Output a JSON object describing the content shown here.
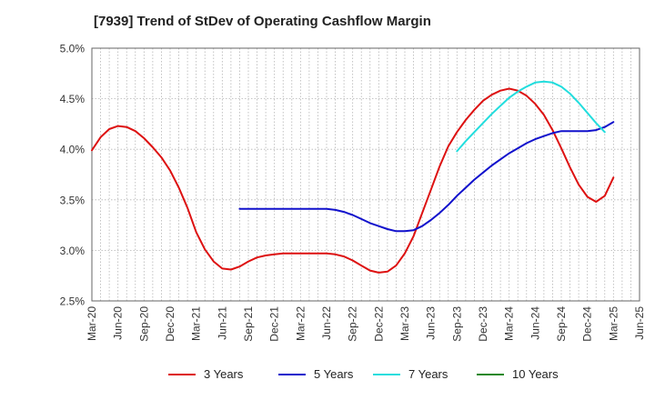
{
  "chart_data": {
    "type": "line",
    "title": "[7939]  Trend of StDev of Operating Cashflow Margin",
    "xlabel": "",
    "ylabel": "",
    "x_ticks": [
      "Mar-20",
      "Jun-20",
      "Sep-20",
      "Dec-20",
      "Mar-21",
      "Jun-21",
      "Sep-21",
      "Dec-21",
      "Mar-22",
      "Jun-22",
      "Sep-22",
      "Dec-22",
      "Mar-23",
      "Jun-23",
      "Sep-23",
      "Dec-23",
      "Mar-24",
      "Jun-24",
      "Sep-24",
      "Dec-24",
      "Mar-25",
      "Jun-25"
    ],
    "y_ticks": [
      "2.5%",
      "3.0%",
      "3.5%",
      "4.0%",
      "4.5%",
      "5.0%"
    ],
    "ylim": [
      2.5,
      5.0
    ],
    "grid": true,
    "legend_position": "bottom",
    "series": [
      {
        "name": "3 Years",
        "color": "#dd1111",
        "points": [
          [
            "Mar-20",
            3.99
          ],
          [
            "Apr-20",
            4.12
          ],
          [
            "May-20",
            4.2
          ],
          [
            "Jun-20",
            4.23
          ],
          [
            "Jul-20",
            4.22
          ],
          [
            "Aug-20",
            4.18
          ],
          [
            "Sep-20",
            4.11
          ],
          [
            "Oct-20",
            4.02
          ],
          [
            "Nov-20",
            3.92
          ],
          [
            "Dec-20",
            3.79
          ],
          [
            "Jan-21",
            3.62
          ],
          [
            "Feb-21",
            3.42
          ],
          [
            "Mar-21",
            3.18
          ],
          [
            "Apr-21",
            3.01
          ],
          [
            "May-21",
            2.89
          ],
          [
            "Jun-21",
            2.82
          ],
          [
            "Jul-21",
            2.81
          ],
          [
            "Aug-21",
            2.84
          ],
          [
            "Sep-21",
            2.89
          ],
          [
            "Oct-21",
            2.93
          ],
          [
            "Nov-21",
            2.95
          ],
          [
            "Dec-21",
            2.96
          ],
          [
            "Jan-22",
            2.97
          ],
          [
            "Feb-22",
            2.97
          ],
          [
            "Mar-22",
            2.97
          ],
          [
            "Apr-22",
            2.97
          ],
          [
            "May-22",
            2.97
          ],
          [
            "Jun-22",
            2.97
          ],
          [
            "Jul-22",
            2.96
          ],
          [
            "Aug-22",
            2.94
          ],
          [
            "Sep-22",
            2.9
          ],
          [
            "Oct-22",
            2.85
          ],
          [
            "Nov-22",
            2.8
          ],
          [
            "Dec-22",
            2.78
          ],
          [
            "Jan-23",
            2.79
          ],
          [
            "Feb-23",
            2.85
          ],
          [
            "Mar-23",
            2.97
          ],
          [
            "Apr-23",
            3.14
          ],
          [
            "May-23",
            3.37
          ],
          [
            "Jun-23",
            3.6
          ],
          [
            "Jul-23",
            3.83
          ],
          [
            "Aug-23",
            4.03
          ],
          [
            "Sep-23",
            4.17
          ],
          [
            "Oct-23",
            4.29
          ],
          [
            "Nov-23",
            4.39
          ],
          [
            "Dec-23",
            4.48
          ],
          [
            "Jan-24",
            4.54
          ],
          [
            "Feb-24",
            4.58
          ],
          [
            "Mar-24",
            4.6
          ],
          [
            "Apr-24",
            4.58
          ],
          [
            "May-24",
            4.53
          ],
          [
            "Jun-24",
            4.45
          ],
          [
            "Jul-24",
            4.34
          ],
          [
            "Aug-24",
            4.19
          ],
          [
            "Sep-24",
            4.01
          ],
          [
            "Oct-24",
            3.82
          ],
          [
            "Nov-24",
            3.65
          ],
          [
            "Dec-24",
            3.53
          ],
          [
            "Jan-25",
            3.48
          ],
          [
            "Feb-25",
            3.54
          ],
          [
            "Mar-25",
            3.72
          ]
        ]
      },
      {
        "name": "5 Years",
        "color": "#1111cc",
        "points": [
          [
            "Aug-21",
            3.41
          ],
          [
            "Sep-21",
            3.41
          ],
          [
            "Oct-21",
            3.41
          ],
          [
            "Nov-21",
            3.41
          ],
          [
            "Dec-21",
            3.41
          ],
          [
            "Jan-22",
            3.41
          ],
          [
            "Feb-22",
            3.41
          ],
          [
            "Mar-22",
            3.41
          ],
          [
            "Apr-22",
            3.41
          ],
          [
            "May-22",
            3.41
          ],
          [
            "Jun-22",
            3.41
          ],
          [
            "Jul-22",
            3.4
          ],
          [
            "Aug-22",
            3.38
          ],
          [
            "Sep-22",
            3.35
          ],
          [
            "Oct-22",
            3.31
          ],
          [
            "Nov-22",
            3.27
          ],
          [
            "Dec-22",
            3.24
          ],
          [
            "Jan-23",
            3.21
          ],
          [
            "Feb-23",
            3.19
          ],
          [
            "Mar-23",
            3.19
          ],
          [
            "Apr-23",
            3.2
          ],
          [
            "May-23",
            3.24
          ],
          [
            "Jun-23",
            3.3
          ],
          [
            "Jul-23",
            3.37
          ],
          [
            "Aug-23",
            3.45
          ],
          [
            "Sep-23",
            3.54
          ],
          [
            "Oct-23",
            3.62
          ],
          [
            "Nov-23",
            3.7
          ],
          [
            "Dec-23",
            3.77
          ],
          [
            "Jan-24",
            3.84
          ],
          [
            "Feb-24",
            3.9
          ],
          [
            "Mar-24",
            3.96
          ],
          [
            "Apr-24",
            4.01
          ],
          [
            "May-24",
            4.06
          ],
          [
            "Jun-24",
            4.1
          ],
          [
            "Jul-24",
            4.13
          ],
          [
            "Aug-24",
            4.16
          ],
          [
            "Sep-24",
            4.18
          ],
          [
            "Oct-24",
            4.18
          ],
          [
            "Nov-24",
            4.18
          ],
          [
            "Dec-24",
            4.18
          ],
          [
            "Jan-25",
            4.19
          ],
          [
            "Feb-25",
            4.22
          ],
          [
            "Mar-25",
            4.27
          ]
        ]
      },
      {
        "name": "7 Years",
        "color": "#22dddd",
        "points": [
          [
            "Sep-23",
            3.98
          ],
          [
            "Oct-23",
            4.08
          ],
          [
            "Nov-23",
            4.17
          ],
          [
            "Dec-23",
            4.26
          ],
          [
            "Jan-24",
            4.35
          ],
          [
            "Feb-24",
            4.43
          ],
          [
            "Mar-24",
            4.51
          ],
          [
            "Apr-24",
            4.57
          ],
          [
            "May-24",
            4.62
          ],
          [
            "Jun-24",
            4.66
          ],
          [
            "Jul-24",
            4.67
          ],
          [
            "Aug-24",
            4.66
          ],
          [
            "Sep-24",
            4.62
          ],
          [
            "Oct-24",
            4.55
          ],
          [
            "Nov-24",
            4.46
          ],
          [
            "Dec-24",
            4.36
          ],
          [
            "Jan-25",
            4.26
          ],
          [
            "Feb-25",
            4.17
          ]
        ]
      },
      {
        "name": "10 Years",
        "color": "#228822",
        "points": []
      }
    ]
  }
}
